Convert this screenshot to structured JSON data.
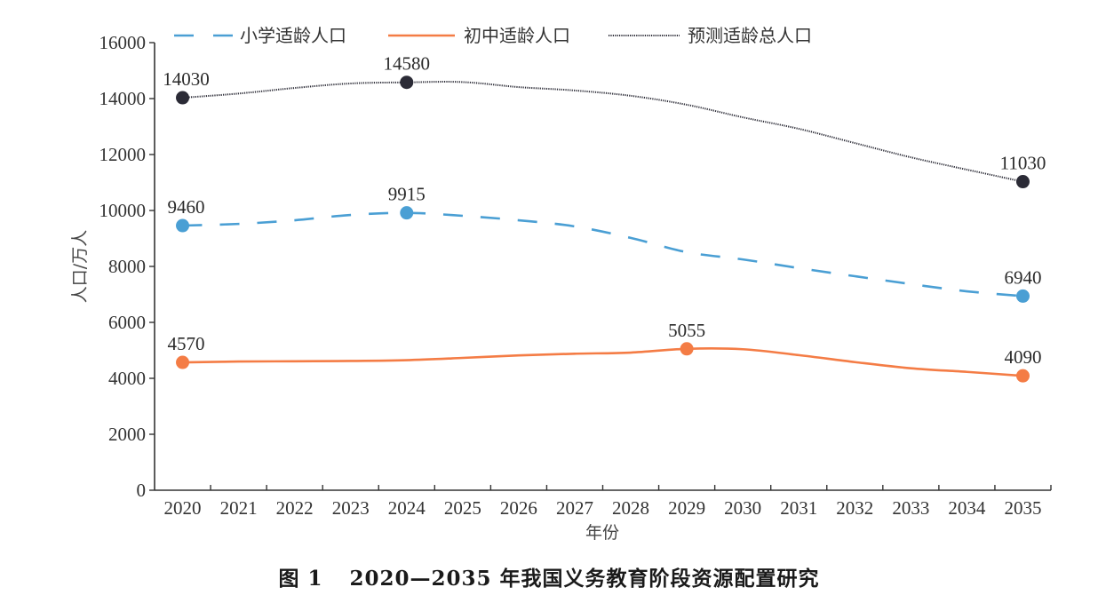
{
  "chart_data": {
    "type": "line",
    "title": "",
    "xlabel": "年份",
    "ylabel": "人口/万人",
    "ylim": [
      0,
      16000
    ],
    "yticks": [
      0,
      2000,
      4000,
      6000,
      8000,
      10000,
      12000,
      14000,
      16000
    ],
    "x": [
      "2020",
      "2021",
      "2022",
      "2023",
      "2024",
      "2025",
      "2026",
      "2027",
      "2028",
      "2029",
      "2030",
      "2031",
      "2032",
      "2033",
      "2034",
      "2035"
    ],
    "grid": false,
    "legend_position": "top",
    "series": [
      {
        "name": "小学适龄人口",
        "color": "#4a9fd4",
        "style": "dashed",
        "values": [
          9460,
          9520,
          9650,
          9840,
          9915,
          9810,
          9650,
          9430,
          9020,
          8510,
          8250,
          7940,
          7650,
          7370,
          7110,
          6940
        ],
        "markers": [
          {
            "x": "2020",
            "value": 9460,
            "label": "9460"
          },
          {
            "x": "2024",
            "value": 9915,
            "label": "9915"
          },
          {
            "x": "2035",
            "value": 6940,
            "label": "6940"
          }
        ]
      },
      {
        "name": "初中适龄人口",
        "color": "#f47c45",
        "style": "solid",
        "values": [
          4570,
          4600,
          4610,
          4620,
          4650,
          4730,
          4820,
          4880,
          4920,
          5055,
          5040,
          4830,
          4580,
          4360,
          4230,
          4090
        ],
        "markers": [
          {
            "x": "2020",
            "value": 4570,
            "label": "4570"
          },
          {
            "x": "2029",
            "value": 5055,
            "label": "5055"
          },
          {
            "x": "2035",
            "value": 4090,
            "label": "4090"
          }
        ]
      },
      {
        "name": "预测适龄总人口",
        "color": "#2b2b36",
        "style": "dotted",
        "values": [
          14030,
          14180,
          14380,
          14540,
          14580,
          14590,
          14410,
          14290,
          14100,
          13780,
          13330,
          12920,
          12410,
          11900,
          11460,
          11030
        ],
        "markers": [
          {
            "x": "2020",
            "value": 14030,
            "label": "14030"
          },
          {
            "x": "2024",
            "value": 14580,
            "label": "14580"
          },
          {
            "x": "2035",
            "value": 11030,
            "label": "11030"
          }
        ]
      }
    ]
  },
  "caption": {
    "figure_number": "图 1",
    "text": "2020—2035 年我国义务教育阶段资源配置研究"
  }
}
